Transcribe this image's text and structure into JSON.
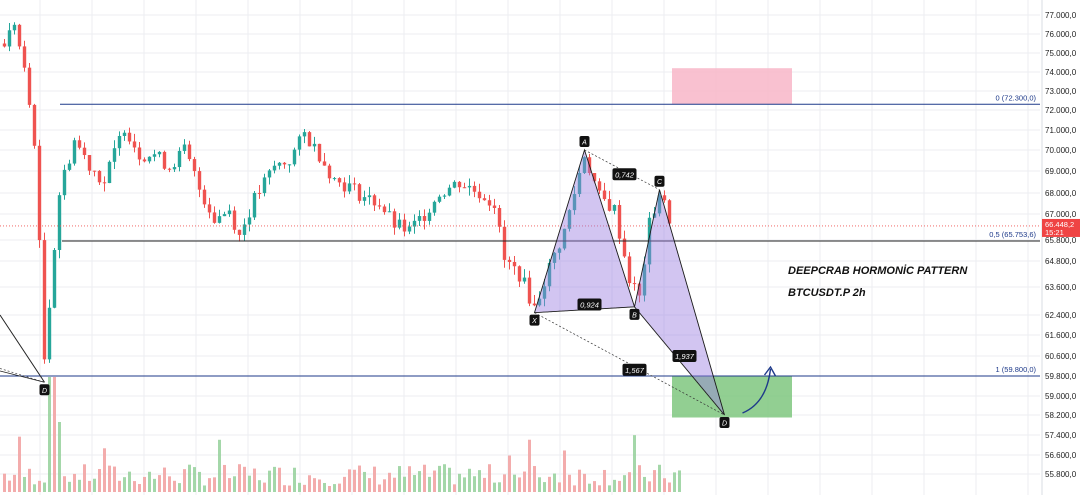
{
  "chart_data": {
    "type": "candlestick",
    "symbol": "BTCUSDT.P 2h",
    "title": "DEEPCRAB HORMONİC PATTERN",
    "subtitle": "BTCUSDT.P 2h",
    "y_axis": {
      "ticks": [
        "77.000,0",
        "76.000,0",
        "75.000,0",
        "74.000,0",
        "73.000,0",
        "72.000,0",
        "71.000,0",
        "70.000,0",
        "69.000,0",
        "68.000,0",
        "67.000,0",
        "65.800,0",
        "64.800,0",
        "63.600,0",
        "62.400,0",
        "61.600,0",
        "60.600,0",
        "59.800,0",
        "59.000,0",
        "58.200,0",
        "57.400,0",
        "56.600,0",
        "55.800,0"
      ],
      "ylim": [
        55400,
        77500
      ]
    },
    "current_price": {
      "value": "66.448,2",
      "countdown": "15:21",
      "price": 66448.2
    },
    "levels": [
      {
        "label": "0 (72.300,0)",
        "price": 72300,
        "color": "#1e3a8a"
      },
      {
        "label": "0,5 (65.753,6)",
        "price": 65753.6,
        "color": "#222222"
      },
      {
        "label": "1 (59.800,0)",
        "price": 59800,
        "color": "#1e3a8a"
      }
    ],
    "pattern_points": [
      {
        "name": "X",
        "bar": 106,
        "price": 62500
      },
      {
        "name": "A",
        "bar": 116,
        "price": 70000
      },
      {
        "name": "B",
        "bar": 126,
        "price": 62750
      },
      {
        "name": "C",
        "bar": 131,
        "price": 68150
      },
      {
        "name": "D",
        "bar": 144,
        "price": 58200
      }
    ],
    "left_d_point": {
      "name": "D",
      "bar": 8,
      "price": 59550
    },
    "ratios": [
      {
        "label": "0,742",
        "bar": 124,
        "price": 68850
      },
      {
        "label": "0,924",
        "bar": 117,
        "price": 62850
      },
      {
        "label": "1,567",
        "bar": 126,
        "price": 60050
      },
      {
        "label": "1,937",
        "bar": 136,
        "price": 60600
      }
    ],
    "zones": [
      {
        "name": "sell-zone",
        "bar_from": 134,
        "bar_to": 158,
        "price_from": 72300,
        "price_to": 74200,
        "color": "#f8b6c8"
      },
      {
        "name": "buy-zone",
        "bar_from": 134,
        "bar_to": 158,
        "price_from": 58100,
        "price_to": 59800,
        "color": "#7fc77f"
      }
    ],
    "candle_keypoints": [
      [
        0,
        75500
      ],
      [
        2,
        76600
      ],
      [
        4,
        74000
      ],
      [
        6,
        70500
      ],
      [
        8,
        60500
      ],
      [
        11,
        68000
      ],
      [
        14,
        70500
      ],
      [
        17,
        69300
      ],
      [
        20,
        68500
      ],
      [
        24,
        71200
      ],
      [
        27,
        69800
      ],
      [
        30,
        69800
      ],
      [
        33,
        69200
      ],
      [
        36,
        70000
      ],
      [
        39,
        68200
      ],
      [
        42,
        66800
      ],
      [
        45,
        67200
      ],
      [
        47,
        66000
      ],
      [
        50,
        67700
      ],
      [
        54,
        69200
      ],
      [
        57,
        69500
      ],
      [
        60,
        70800
      ],
      [
        63,
        69800
      ],
      [
        66,
        68600
      ],
      [
        69,
        68300
      ],
      [
        72,
        67800
      ],
      [
        75,
        67500
      ],
      [
        78,
        66500
      ],
      [
        81,
        66200
      ],
      [
        84,
        67000
      ],
      [
        87,
        68000
      ],
      [
        91,
        68500
      ],
      [
        95,
        68000
      ],
      [
        98,
        67500
      ],
      [
        100,
        64800
      ],
      [
        103,
        64200
      ],
      [
        106,
        62700
      ],
      [
        109,
        64500
      ],
      [
        112,
        66200
      ],
      [
        116,
        69800
      ],
      [
        119,
        67800
      ],
      [
        122,
        67200
      ],
      [
        125,
        64000
      ],
      [
        127,
        63100
      ],
      [
        129,
        66500
      ],
      [
        131,
        68000
      ],
      [
        133,
        66800
      ]
    ],
    "grid": true,
    "legend": "none"
  }
}
